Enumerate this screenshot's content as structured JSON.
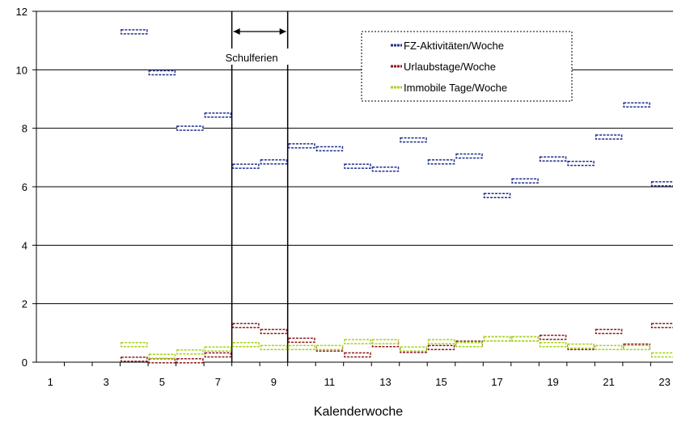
{
  "chart_data": {
    "type": "scatter",
    "marker": "horizontal-dash",
    "xlabel": "Kalenderwoche",
    "ylabel": "",
    "ylim": [
      0,
      12
    ],
    "yticks": [
      "0",
      "2",
      "4",
      "6",
      "8",
      "10",
      "12"
    ],
    "xticks": [
      "1",
      "3",
      "5",
      "7",
      "9",
      "11",
      "13",
      "15",
      "17",
      "19",
      "21",
      "23"
    ],
    "grid": "horizontal",
    "legend_position": "top-right",
    "annotation": {
      "text": "Schulferien",
      "x_start": 7.5,
      "x_end": 9.5
    },
    "x": [
      4,
      5,
      6,
      7,
      8,
      9,
      10,
      11,
      12,
      13,
      14,
      15,
      16,
      17,
      18,
      19,
      20,
      21,
      22,
      23
    ],
    "series": [
      {
        "name": "FZ-Aktivitäten/Woche",
        "color": "#1f2f8f",
        "values": [
          11.3,
          9.9,
          8.0,
          8.45,
          6.7,
          6.85,
          7.4,
          7.3,
          6.7,
          6.6,
          7.6,
          6.85,
          7.05,
          5.7,
          6.2,
          6.95,
          6.8,
          7.7,
          8.8,
          6.1
        ]
      },
      {
        "name": "Urlaubstage/Woche",
        "color": "#8b1a1a",
        "values": [
          0.1,
          0.05,
          0.05,
          0.25,
          1.25,
          1.05,
          0.75,
          0.45,
          0.25,
          0.6,
          0.4,
          0.5,
          0.65,
          0.8,
          0.8,
          0.85,
          0.5,
          1.05,
          0.55,
          1.25
        ]
      },
      {
        "name": "Immobile Tage/Woche",
        "color": "#a6d219",
        "values": [
          0.6,
          0.2,
          0.35,
          0.45,
          0.6,
          0.5,
          0.5,
          0.5,
          0.7,
          0.7,
          0.45,
          0.7,
          0.6,
          0.8,
          0.8,
          0.6,
          0.55,
          0.5,
          0.5,
          0.25
        ]
      }
    ]
  }
}
